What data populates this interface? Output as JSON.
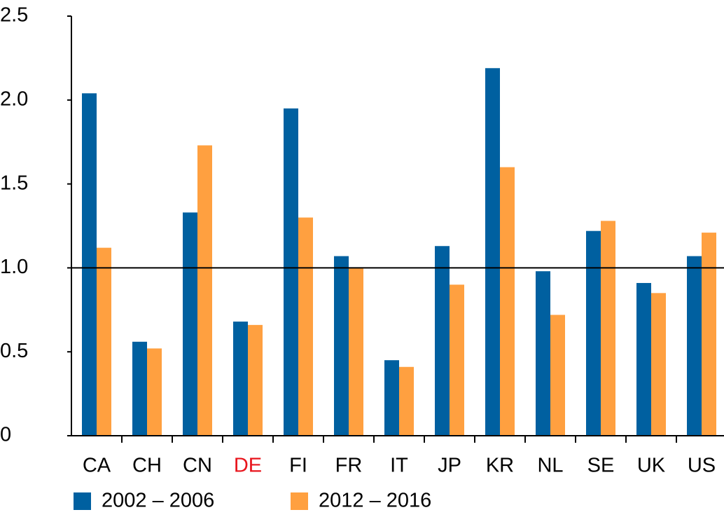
{
  "chart_data": {
    "type": "bar",
    "categories": [
      "CA",
      "CH",
      "CN",
      "DE",
      "FI",
      "FR",
      "IT",
      "JP",
      "KR",
      "NL",
      "SE",
      "UK",
      "US"
    ],
    "category_label_colors": [
      "#000",
      "#000",
      "#000",
      "#e8141c",
      "#000",
      "#000",
      "#000",
      "#000",
      "#000",
      "#000",
      "#000",
      "#000",
      "#000"
    ],
    "series": [
      {
        "name": "2002 – 2006",
        "color": "#0060a0",
        "values": [
          2.04,
          0.56,
          1.33,
          0.68,
          1.95,
          1.07,
          0.45,
          1.13,
          2.19,
          0.98,
          1.22,
          0.91,
          1.07
        ]
      },
      {
        "name": "2012 – 2016",
        "color": "#ffa040",
        "values": [
          1.12,
          0.52,
          1.73,
          0.66,
          1.3,
          1.0,
          0.41,
          0.9,
          1.6,
          0.72,
          1.28,
          0.85,
          1.21
        ]
      }
    ],
    "ylim": [
      0,
      2.5
    ],
    "yticks": [
      0,
      0.5,
      {
        "value": 1,
        "label": "1.0"
      },
      1.5,
      {
        "value": 2,
        "label": "2.0"
      },
      2.5
    ],
    "reference_line": 1,
    "legend": "bottom"
  }
}
